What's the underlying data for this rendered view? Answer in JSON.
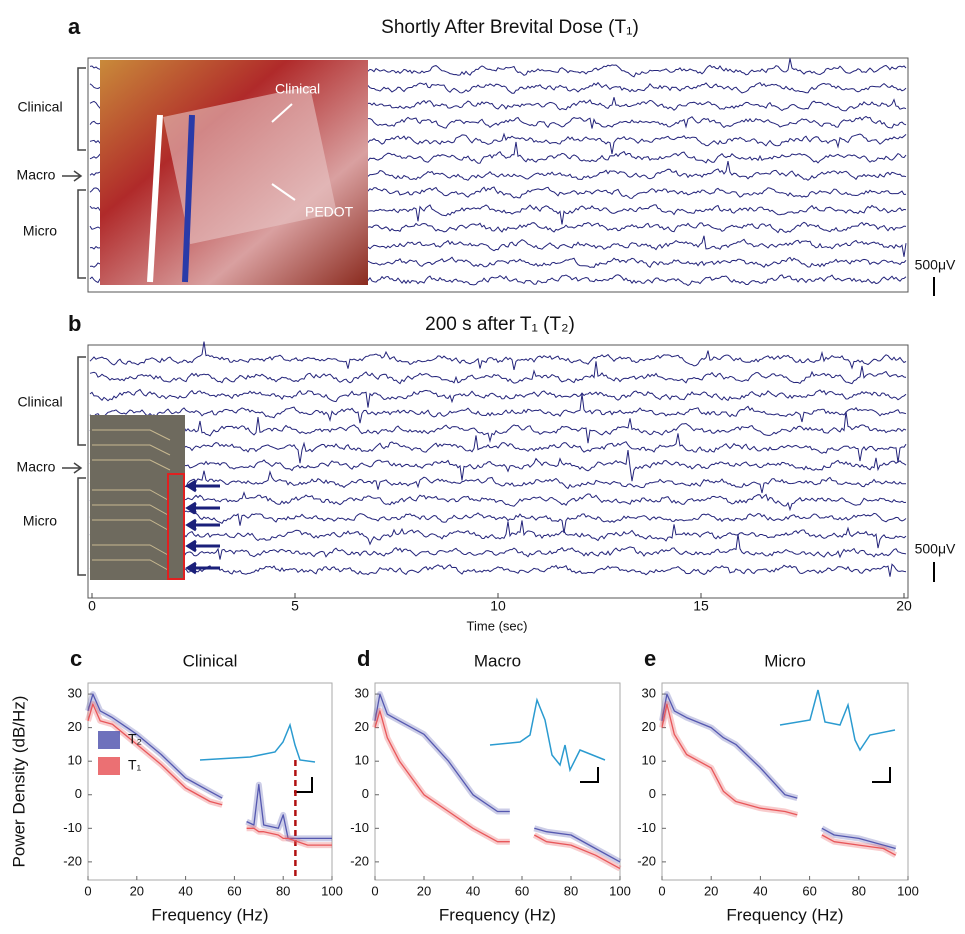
{
  "panels": [
    {
      "letter": "a",
      "title": "Shortly After Brevital Dose (T₁)",
      "channel_labels": [
        "Clinical",
        "Macro",
        "Micro"
      ],
      "photo_labels": [
        "Clinical",
        "PEDOT"
      ],
      "scale_label": "500μV"
    },
    {
      "letter": "b",
      "title": "200 s after T₁  (T₂)",
      "channel_labels": [
        "Clinical",
        "Macro",
        "Micro"
      ],
      "scale_label": "500μV",
      "xlabel": "Time (sec)",
      "xlim": [
        0,
        20
      ],
      "xticks": [
        0,
        5,
        10,
        15,
        20
      ]
    }
  ],
  "chart_data": [
    {
      "type": "line",
      "letter": "c",
      "title": "Clinical",
      "ylabel": "Power Density (dB/Hz)",
      "xlabel": "Frequency (Hz)",
      "xlim": [
        0,
        100
      ],
      "xticks": [
        0,
        20,
        40,
        60,
        80,
        100
      ],
      "ylim": [
        -25.4,
        33.3
      ],
      "yticks": [
        -20,
        -10,
        0,
        10,
        20,
        30
      ],
      "x": [
        0,
        2,
        5,
        10,
        20,
        30,
        40,
        50,
        55,
        60,
        65,
        68,
        70,
        72,
        78,
        80,
        82,
        90,
        100
      ],
      "series": [
        {
          "name": "T₂",
          "color": "#5558b0",
          "values": [
            25,
            30,
            25,
            23,
            18,
            12,
            5,
            1,
            -1,
            null,
            -8,
            -9,
            3,
            -9,
            -10,
            -6,
            -13,
            -13,
            -13
          ]
        },
        {
          "name": "T₁",
          "color": "#e8575a",
          "values": [
            22,
            27,
            22,
            21,
            15,
            9,
            2,
            -2,
            -3,
            null,
            -10,
            -10,
            -11,
            -11,
            -12,
            -13,
            -13,
            -15,
            -15
          ]
        }
      ],
      "legend": "lower left",
      "marker_line": 85
    },
    {
      "type": "line",
      "letter": "d",
      "title": "Macro",
      "xlabel": "Frequency (Hz)",
      "xlim": [
        0,
        100
      ],
      "xticks": [
        0,
        20,
        40,
        60,
        80,
        100
      ],
      "ylim": [
        -25.4,
        33.3
      ],
      "yticks": [
        -20,
        -10,
        0,
        10,
        20,
        30
      ],
      "x": [
        0,
        2,
        5,
        10,
        20,
        30,
        40,
        50,
        55,
        60,
        65,
        70,
        80,
        90,
        100
      ],
      "series": [
        {
          "color": "#5558b0",
          "values": [
            22,
            30,
            24,
            22,
            18,
            10,
            0,
            -5,
            -5,
            null,
            -10,
            -11,
            -12,
            -16,
            -20
          ]
        },
        {
          "color": "#e8575a",
          "values": [
            20,
            25,
            17,
            10,
            0,
            -5,
            -10,
            -14,
            -14,
            null,
            -12,
            -14,
            -15,
            -18,
            -22
          ]
        }
      ]
    },
    {
      "type": "line",
      "letter": "e",
      "title": "Micro",
      "xlabel": "Frequency (Hz)",
      "xlim": [
        0,
        100
      ],
      "xticks": [
        0,
        20,
        40,
        60,
        80,
        100
      ],
      "ylim": [
        -25.4,
        33.3
      ],
      "yticks": [
        -20,
        -10,
        0,
        10,
        20,
        30
      ],
      "x": [
        0,
        2,
        5,
        10,
        20,
        25,
        30,
        40,
        50,
        55,
        60,
        65,
        70,
        80,
        90,
        95
      ],
      "series": [
        {
          "color": "#5558b0",
          "values": [
            22,
            30,
            25,
            23,
            20,
            17,
            15,
            8,
            0,
            -1,
            null,
            -10,
            -12,
            -13,
            -15,
            -16
          ]
        },
        {
          "color": "#e8575a",
          "values": [
            20,
            27,
            18,
            12,
            8,
            1,
            -2,
            -4,
            -5,
            -6,
            null,
            -12,
            -14,
            -15,
            -16,
            -18
          ]
        }
      ]
    }
  ]
}
